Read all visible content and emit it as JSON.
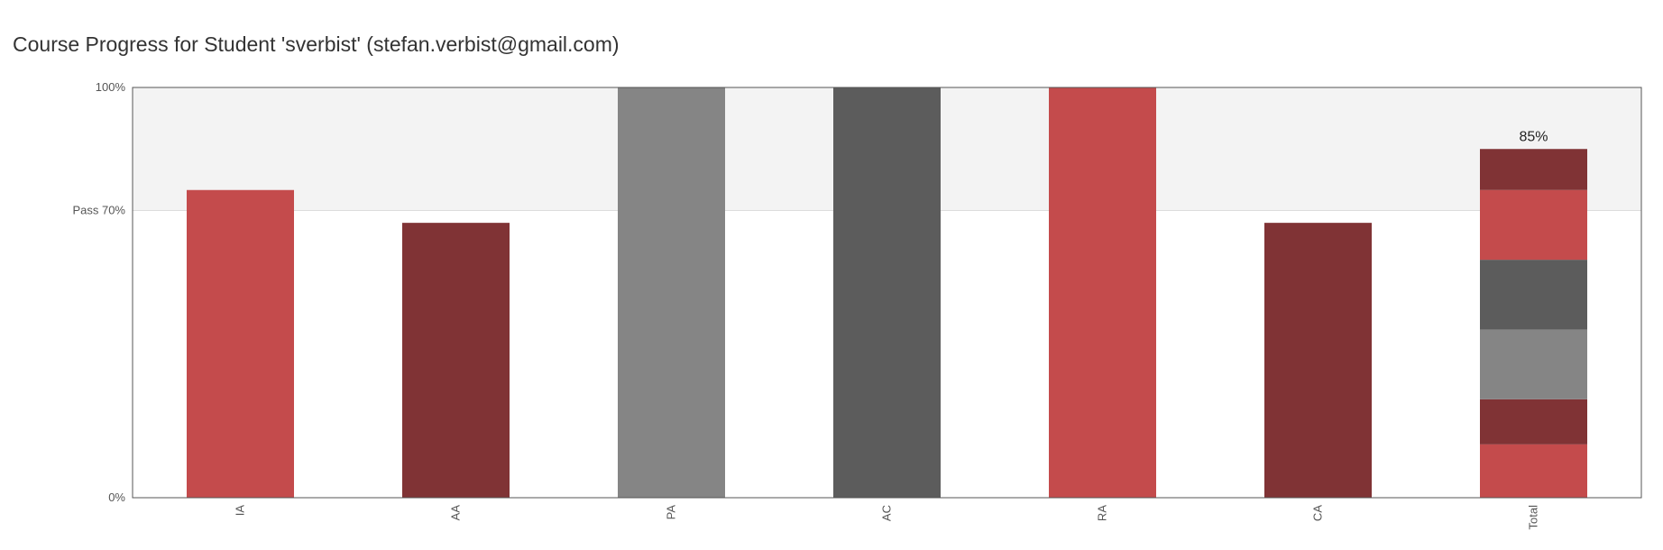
{
  "page": {
    "title": "Course Progress for Student 'sverbist' (stefan.verbist@gmail.com)"
  },
  "colors": {
    "red": "#c44b4c",
    "dark_red": "#803335",
    "gray": "#858585",
    "dark_gray": "#5c5c5c",
    "pass_band": "#f3f3f3",
    "axis": "#555555"
  },
  "chart_data": {
    "type": "bar",
    "categories": [
      "IA",
      "AA",
      "PA",
      "AC",
      "RA",
      "CA",
      "Total"
    ],
    "values": [
      75,
      67,
      100,
      100,
      100,
      67,
      85
    ],
    "bar_colors": [
      "#c44b4c",
      "#803335",
      "#858585",
      "#5c5c5c",
      "#c44b4c",
      "#803335",
      null
    ],
    "stacked_total": {
      "category": "Total",
      "segments": [
        {
          "value": 13,
          "color": "#c44b4c"
        },
        {
          "value": 11,
          "color": "#803335"
        },
        {
          "value": 17,
          "color": "#858585"
        },
        {
          "value": 17,
          "color": "#5c5c5c"
        },
        {
          "value": 17,
          "color": "#c44b4c"
        },
        {
          "value": 10,
          "color": "#803335"
        }
      ],
      "label": "85%"
    },
    "ylim": [
      0,
      100
    ],
    "y_ticks": [
      {
        "value": 0,
        "label": "0%"
      },
      {
        "value": 70,
        "label": "Pass 70%"
      },
      {
        "value": 100,
        "label": "100%"
      }
    ],
    "pass_threshold": 70,
    "xlabel": "",
    "ylabel": "",
    "grid": false
  }
}
